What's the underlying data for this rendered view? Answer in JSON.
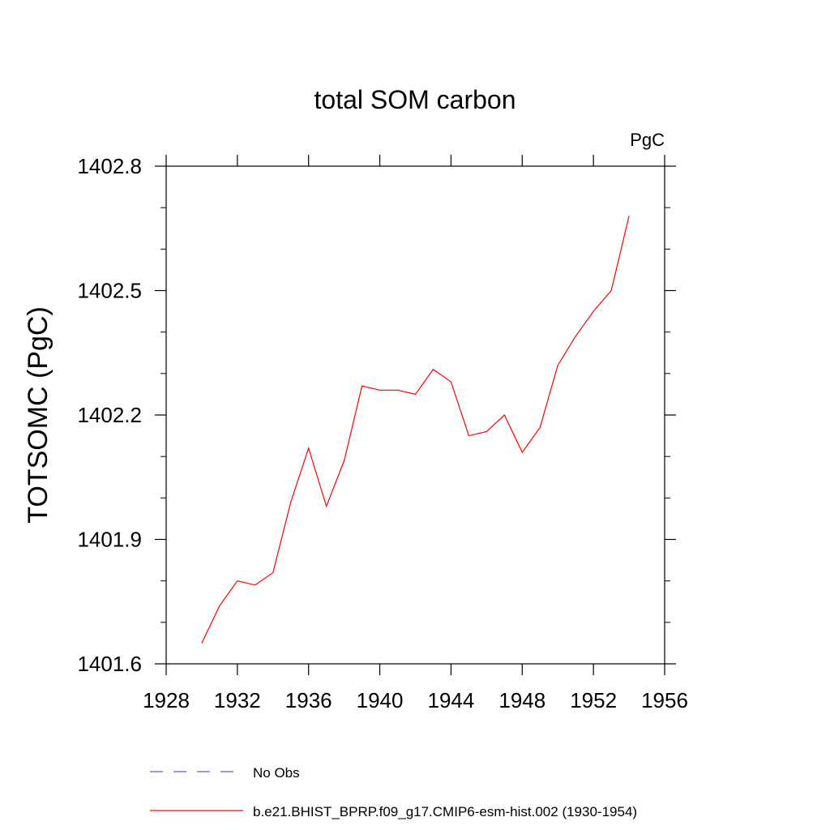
{
  "chart_data": {
    "type": "line",
    "title": "total SOM carbon",
    "units": "PgC",
    "ylabel": "TOTSOMC  (PgC)",
    "xlabel": "",
    "xlim": [
      1928,
      1956
    ],
    "ylim": [
      1401.6,
      1402.8
    ],
    "x_ticks": [
      1928,
      1932,
      1936,
      1940,
      1944,
      1948,
      1952,
      1956
    ],
    "x_tick_labels": [
      "1928",
      "1932",
      "1936",
      "1940",
      "1944",
      "1948",
      "1952",
      "1956"
    ],
    "y_ticks": [
      1401.6,
      1401.9,
      1402.2,
      1402.5,
      1402.8
    ],
    "y_tick_labels": [
      "1401.6",
      "1401.9",
      "1402.2",
      "1402.5",
      "1402.8"
    ],
    "grid": false,
    "legend_position": "bottom",
    "series": [
      {
        "name": "b.e21.BHIST_BPRP.f09_g17.CMIP6-esm-hist.002 (1930-1954)",
        "color": "#ff0000",
        "style": "solid",
        "x": [
          1930,
          1931,
          1932,
          1933,
          1934,
          1935,
          1936,
          1937,
          1938,
          1939,
          1940,
          1941,
          1942,
          1943,
          1944,
          1945,
          1946,
          1947,
          1948,
          1949,
          1950,
          1951,
          1952,
          1953,
          1954
        ],
        "y": [
          1401.65,
          1401.74,
          1401.8,
          1401.79,
          1401.82,
          1401.99,
          1402.12,
          1401.98,
          1402.09,
          1402.27,
          1402.26,
          1402.26,
          1402.25,
          1402.31,
          1402.28,
          1402.15,
          1402.16,
          1402.2,
          1402.11,
          1402.17,
          1402.32,
          1402.39,
          1402.45,
          1402.5,
          1402.68
        ]
      }
    ],
    "legend": [
      {
        "label": "No Obs",
        "color": "#6a5acd",
        "style": "dashed"
      },
      {
        "label": "b.e21.BHIST_BPRP.f09_g17.CMIP6-esm-hist.002 (1930-1954)",
        "color": "#ff0000",
        "style": "solid"
      }
    ]
  }
}
